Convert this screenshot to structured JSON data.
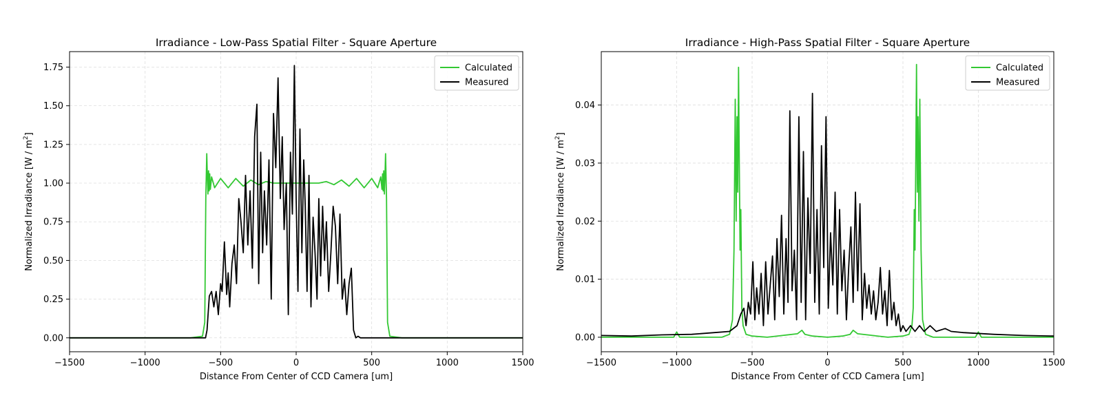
{
  "colors": {
    "calculated": "#32c832",
    "measured": "#000000",
    "grid": "#dddddd"
  },
  "chart_data": [
    {
      "type": "line",
      "title": "Irradiance - Low-Pass Spatial Filter - Square Aperture",
      "xlabel": "Distance From Center of CCD Camera [um]",
      "ylabel_main": "Normalized Irradiance [W / m",
      "ylabel_sup": "2",
      "ylabel_end": "]",
      "xlim": [
        -1500,
        1500
      ],
      "ylim": [
        -0.09,
        1.85
      ],
      "xticks": [
        -1500,
        -1000,
        -500,
        0,
        500,
        1000,
        1500
      ],
      "xtick_labels": [
        "−1500",
        "−1000",
        "−500",
        "0",
        "500",
        "1000",
        "1500"
      ],
      "yticks": [
        0.0,
        0.25,
        0.5,
        0.75,
        1.0,
        1.25,
        1.5,
        1.75
      ],
      "ytick_labels": [
        "0.00",
        "0.25",
        "0.50",
        "0.75",
        "1.00",
        "1.25",
        "1.50",
        "1.75"
      ],
      "grid": true,
      "legend_position": "top-right",
      "series": [
        {
          "name": "Calculated",
          "color_key": "calculated",
          "x": [
            -1500,
            -1200,
            -900,
            -700,
            -620,
            -605,
            -598,
            -592,
            -588,
            -584,
            -580,
            -576,
            -572,
            -568,
            -560,
            -540,
            -500,
            -450,
            -400,
            -350,
            -300,
            -250,
            -200,
            -150,
            -100,
            -50,
            0,
            50,
            100,
            150,
            200,
            250,
            300,
            350,
            400,
            450,
            500,
            540,
            560,
            568,
            572,
            576,
            580,
            584,
            588,
            592,
            598,
            605,
            620,
            700,
            900,
            1200,
            1500
          ],
          "values": [
            0.0,
            0.0,
            0.0,
            0.0,
            0.01,
            0.1,
            0.9,
            1.19,
            1.05,
            0.93,
            1.08,
            0.95,
            1.06,
            0.96,
            1.04,
            0.97,
            1.03,
            0.97,
            1.03,
            0.98,
            1.02,
            0.99,
            1.01,
            1.0,
            1.0,
            1.0,
            1.0,
            1.0,
            1.0,
            1.0,
            1.01,
            0.99,
            1.02,
            0.98,
            1.03,
            0.97,
            1.03,
            0.97,
            1.04,
            0.96,
            1.06,
            0.95,
            1.08,
            0.93,
            1.05,
            1.19,
            0.9,
            0.1,
            0.01,
            0.0,
            0.0,
            0.0,
            0.0
          ]
        },
        {
          "name": "Measured",
          "color_key": "measured",
          "x": [
            -1500,
            -1200,
            -900,
            -700,
            -620,
            -600,
            -590,
            -575,
            -560,
            -545,
            -530,
            -515,
            -500,
            -490,
            -475,
            -460,
            -450,
            -440,
            -425,
            -410,
            -395,
            -380,
            -365,
            -350,
            -335,
            -320,
            -305,
            -290,
            -275,
            -260,
            -248,
            -235,
            -222,
            -210,
            -195,
            -180,
            -165,
            -150,
            -135,
            -120,
            -105,
            -92,
            -80,
            -65,
            -52,
            -38,
            -25,
            -12,
            0,
            12,
            25,
            38,
            50,
            60,
            72,
            85,
            98,
            112,
            125,
            138,
            150,
            162,
            175,
            188,
            200,
            215,
            230,
            245,
            260,
            275,
            290,
            305,
            320,
            335,
            350,
            365,
            380,
            395,
            410,
            425,
            440,
            455,
            470,
            485,
            500,
            515,
            530,
            545,
            560,
            575,
            590,
            605,
            620,
            640,
            700,
            900,
            1200,
            1500
          ],
          "values": [
            0.0,
            0.0,
            0.0,
            0.0,
            0.0,
            0.0,
            0.05,
            0.27,
            0.3,
            0.2,
            0.3,
            0.15,
            0.35,
            0.3,
            0.62,
            0.28,
            0.42,
            0.2,
            0.48,
            0.6,
            0.35,
            0.9,
            0.75,
            0.55,
            1.05,
            0.6,
            0.95,
            0.45,
            1.3,
            1.51,
            0.35,
            1.2,
            0.55,
            0.95,
            0.6,
            1.15,
            0.25,
            1.45,
            1.1,
            1.68,
            0.9,
            1.3,
            0.7,
            1.0,
            0.15,
            1.2,
            0.8,
            1.76,
            0.9,
            0.3,
            1.35,
            0.55,
            1.15,
            0.85,
            0.3,
            1.05,
            0.2,
            0.78,
            0.55,
            0.25,
            0.9,
            0.4,
            0.85,
            0.5,
            0.75,
            0.3,
            0.55,
            0.85,
            0.72,
            0.35,
            0.8,
            0.25,
            0.38,
            0.15,
            0.35,
            0.45,
            0.05,
            0.0,
            0.01,
            0.0,
            0.0,
            0.0,
            0.0,
            0.0,
            0.0,
            0.0,
            0.0,
            0.0,
            0.0,
            0.0,
            0.0,
            0.0,
            0.0,
            0.0,
            0.0,
            0.0,
            0.0,
            0.0
          ]
        }
      ]
    },
    {
      "type": "line",
      "title": "Irradiance - High-Pass Spatial Filter - Square Aperture",
      "xlabel": "Distance From Center of CCD Camera [um]",
      "ylabel_main": "Normalized Irradiance [W / m",
      "ylabel_sup": "2",
      "ylabel_end": "]",
      "xlim": [
        -1500,
        1500
      ],
      "ylim": [
        -0.0025,
        0.0492
      ],
      "xticks": [
        -1500,
        -1000,
        -500,
        0,
        500,
        1000,
        1500
      ],
      "xtick_labels": [
        "−1500",
        "−1000",
        "−500",
        "0",
        "500",
        "1000",
        "1500"
      ],
      "yticks": [
        0.0,
        0.01,
        0.02,
        0.03,
        0.04
      ],
      "ytick_labels": [
        "0.00",
        "0.01",
        "0.02",
        "0.03",
        "0.04"
      ],
      "grid": true,
      "legend_position": "top-right",
      "series": [
        {
          "name": "Calculated",
          "color_key": "calculated",
          "x": [
            -1500,
            -1100,
            -1020,
            -1000,
            -980,
            -900,
            -700,
            -650,
            -630,
            -620,
            -612,
            -606,
            -600,
            -595,
            -590,
            -585,
            -580,
            -575,
            -568,
            -560,
            -540,
            -500,
            -400,
            -300,
            -200,
            -170,
            -150,
            -100,
            0,
            100,
            150,
            170,
            200,
            300,
            400,
            500,
            540,
            560,
            568,
            575,
            580,
            585,
            590,
            595,
            600,
            606,
            612,
            620,
            630,
            650,
            700,
            900,
            980,
            1000,
            1020,
            1100,
            1500
          ],
          "values": [
            0.0,
            0.0,
            0.0,
            0.0009,
            0.0,
            0.0,
            0.0,
            0.0005,
            0.003,
            0.015,
            0.041,
            0.02,
            0.038,
            0.025,
            0.0465,
            0.03,
            0.015,
            0.022,
            0.005,
            0.002,
            0.0005,
            0.0002,
            0.0,
            0.0003,
            0.0006,
            0.0012,
            0.0005,
            0.0002,
            0.0,
            0.0002,
            0.0005,
            0.0012,
            0.0006,
            0.0003,
            0.0,
            0.0002,
            0.0005,
            0.002,
            0.005,
            0.022,
            0.015,
            0.03,
            0.047,
            0.025,
            0.038,
            0.02,
            0.041,
            0.015,
            0.003,
            0.0005,
            0.0,
            0.0,
            0.0,
            0.0009,
            0.0,
            0.0,
            0.0
          ]
        },
        {
          "name": "Measured",
          "color_key": "measured",
          "x": [
            -1500,
            -1300,
            -1100,
            -900,
            -750,
            -650,
            -600,
            -575,
            -555,
            -540,
            -525,
            -510,
            -495,
            -482,
            -470,
            -455,
            -440,
            -425,
            -410,
            -395,
            -380,
            -365,
            -350,
            -335,
            -320,
            -305,
            -290,
            -275,
            -262,
            -250,
            -235,
            -220,
            -205,
            -190,
            -175,
            -160,
            -145,
            -130,
            -115,
            -100,
            -85,
            -70,
            -55,
            -40,
            -25,
            -10,
            5,
            20,
            35,
            50,
            65,
            80,
            95,
            110,
            125,
            140,
            155,
            170,
            185,
            200,
            215,
            230,
            245,
            260,
            275,
            290,
            305,
            320,
            335,
            350,
            365,
            380,
            395,
            410,
            425,
            440,
            455,
            470,
            485,
            500,
            520,
            550,
            580,
            610,
            640,
            680,
            720,
            780,
            820,
            900,
            1100,
            1300,
            1500
          ],
          "values": [
            0.0003,
            0.0002,
            0.0004,
            0.0005,
            0.0008,
            0.001,
            0.002,
            0.004,
            0.005,
            0.002,
            0.006,
            0.004,
            0.013,
            0.003,
            0.0085,
            0.004,
            0.011,
            0.002,
            0.013,
            0.004,
            0.009,
            0.014,
            0.003,
            0.017,
            0.007,
            0.021,
            0.004,
            0.017,
            0.006,
            0.039,
            0.008,
            0.015,
            0.003,
            0.038,
            0.006,
            0.032,
            0.003,
            0.024,
            0.011,
            0.042,
            0.006,
            0.022,
            0.004,
            0.033,
            0.012,
            0.038,
            0.005,
            0.018,
            0.009,
            0.025,
            0.004,
            0.022,
            0.008,
            0.015,
            0.003,
            0.012,
            0.019,
            0.006,
            0.025,
            0.008,
            0.023,
            0.003,
            0.011,
            0.005,
            0.009,
            0.004,
            0.008,
            0.003,
            0.006,
            0.012,
            0.004,
            0.008,
            0.002,
            0.0115,
            0.003,
            0.006,
            0.002,
            0.004,
            0.001,
            0.002,
            0.001,
            0.002,
            0.001,
            0.002,
            0.001,
            0.002,
            0.001,
            0.0015,
            0.001,
            0.0008,
            0.0005,
            0.0003,
            0.0002
          ]
        }
      ]
    }
  ]
}
